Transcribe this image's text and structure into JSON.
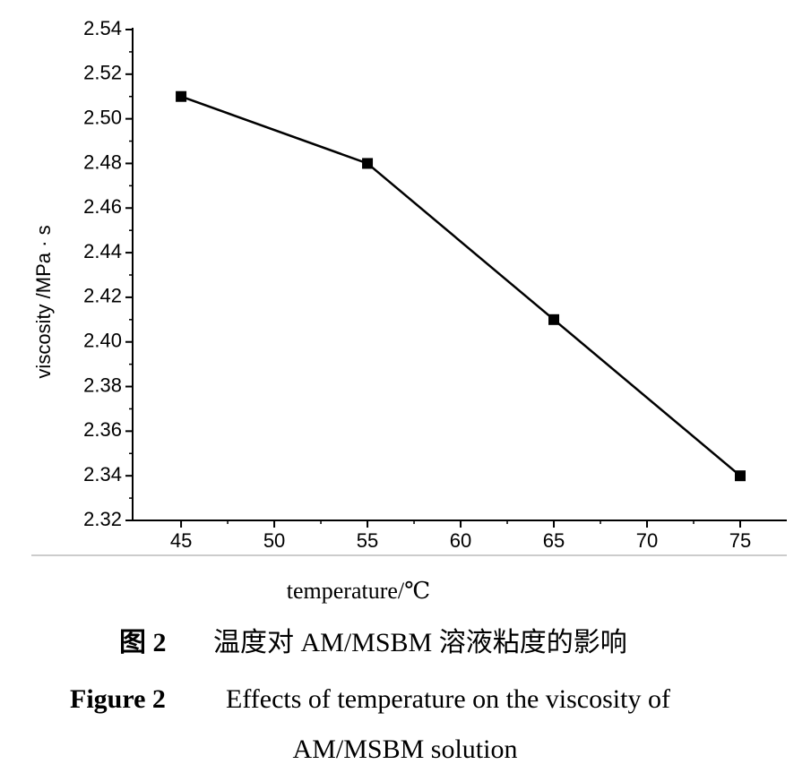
{
  "chart_data": {
    "type": "line",
    "x_label": "temperature/℃",
    "y_label": "viscosity /MPa · s",
    "x": [
      45,
      55,
      65,
      75
    ],
    "series": [
      {
        "name": "viscosity",
        "color": "#000000",
        "values": [
          2.51,
          2.48,
          2.41,
          2.34
        ]
      }
    ],
    "xlim": [
      42.4,
      77.5
    ],
    "xticks": [
      45,
      50,
      55,
      60,
      65,
      70,
      75
    ],
    "ylim": [
      2.32,
      2.54
    ],
    "yticks": [
      2.32,
      2.34,
      2.36,
      2.38,
      {
        "value": 2.4,
        "label": "2.40"
      },
      2.42,
      2.44,
      2.46,
      2.48,
      {
        "value": 2.5,
        "label": "2.50"
      },
      2.52,
      2.54
    ],
    "grid": false
  },
  "caption": {
    "cn_label": "图 2",
    "cn_text": "温度对 AM/MSBM 溶液粘度的影响",
    "en_label": "Figure 2",
    "en_line1": "Effects of temperature on the viscosity of",
    "en_line2": "AM/MSBM solution"
  }
}
